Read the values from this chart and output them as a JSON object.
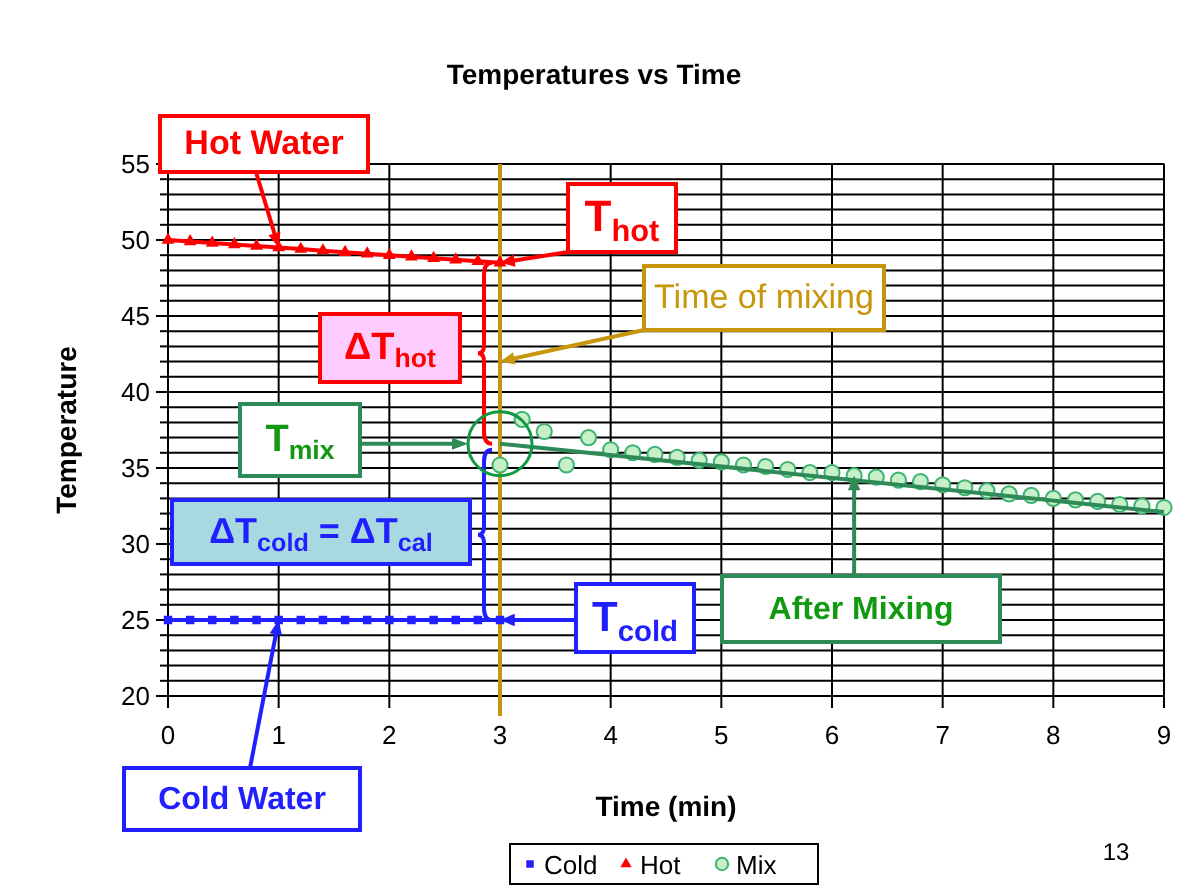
{
  "chart_data": {
    "type": "line",
    "title": "Temperatures vs Time",
    "xlabel": "Time (min)",
    "ylabel": "Temperature",
    "xlim": [
      0,
      9
    ],
    "xticks": [
      0,
      1,
      2,
      3,
      4,
      5,
      6,
      7,
      8,
      9
    ],
    "ylim": [
      20,
      55
    ],
    "yticks": [
      20,
      {
        "value": 21,
        "label": null
      },
      {
        "value": 22,
        "label": null
      },
      {
        "value": 23,
        "label": null
      },
      {
        "value": 24,
        "label": null
      },
      25,
      {
        "value": 26,
        "label": null
      },
      {
        "value": 27,
        "label": null
      },
      {
        "value": 28,
        "label": null
      },
      {
        "value": 29,
        "label": null
      },
      30,
      {
        "value": 31,
        "label": null
      },
      {
        "value": 32,
        "label": null
      },
      {
        "value": 33,
        "label": null
      },
      {
        "value": 34,
        "label": null
      },
      35,
      {
        "value": 36,
        "label": null
      },
      {
        "value": 37,
        "label": null
      },
      {
        "value": 38,
        "label": null
      },
      {
        "value": 39,
        "label": null
      },
      40,
      {
        "value": 41,
        "label": null
      },
      {
        "value": 42,
        "label": null
      },
      {
        "value": 43,
        "label": null
      },
      {
        "value": 44,
        "label": null
      },
      45,
      {
        "value": 46,
        "label": null
      },
      {
        "value": 47,
        "label": null
      },
      {
        "value": 48,
        "label": null
      },
      {
        "value": 49,
        "label": null
      },
      50,
      {
        "value": 51,
        "label": null
      },
      {
        "value": 52,
        "label": null
      },
      {
        "value": 53,
        "label": null
      },
      {
        "value": 54,
        "label": null
      },
      55
    ],
    "grid": true,
    "legend": "bottom",
    "series": [
      {
        "name": "Cold",
        "type": "line",
        "marker": "square",
        "color": "#1f1fff",
        "x": [
          0,
          0.2,
          0.4,
          0.6,
          0.8,
          1,
          1.2,
          1.4,
          1.6,
          1.8,
          2,
          2.2,
          2.4,
          2.6,
          2.8,
          3
        ],
        "values": [
          25,
          25,
          25,
          25,
          25,
          25,
          25,
          25,
          25,
          25,
          25,
          25,
          25,
          25,
          25,
          25
        ]
      },
      {
        "name": "Hot",
        "type": "line",
        "marker": "triangle",
        "color": "#ff0000",
        "x": [
          0,
          0.2,
          0.4,
          0.6,
          0.8,
          1,
          1.2,
          1.4,
          1.6,
          1.8,
          2,
          2.2,
          2.4,
          2.6,
          2.8,
          3
        ],
        "values": [
          50,
          49.9,
          49.8,
          49.7,
          49.6,
          49.5,
          49.4,
          49.3,
          49.2,
          49.1,
          49,
          48.9,
          48.8,
          48.7,
          48.6,
          48.5
        ]
      },
      {
        "name": "Mix",
        "type": "scatter",
        "marker": "circle",
        "color": "#3cb371",
        "x": [
          3,
          3.2,
          3.4,
          3.6,
          3.8,
          4,
          4.2,
          4.4,
          4.6,
          4.8,
          5,
          5.2,
          5.4,
          5.6,
          5.8,
          6,
          6.2,
          6.4,
          6.6,
          6.8,
          7,
          7.2,
          7.4,
          7.6,
          7.8,
          8,
          8.2,
          8.4,
          8.6,
          8.8,
          9
        ],
        "values": [
          35.2,
          38.2,
          37.4,
          35.2,
          37,
          36.2,
          36,
          35.9,
          35.7,
          35.5,
          35.4,
          35.2,
          35.1,
          34.9,
          34.7,
          34.7,
          34.5,
          34.4,
          34.2,
          34.1,
          33.9,
          33.7,
          33.5,
          33.3,
          33.2,
          33,
          32.9,
          32.8,
          32.6,
          32.5,
          32.4
        ]
      },
      {
        "type": "line",
        "color": "#2e8b57",
        "x": [
          3,
          9
        ],
        "values": [
          36.6,
          32.1
        ]
      }
    ],
    "ref_lines": [
      {
        "axis": "x",
        "value": 3,
        "color": "#c8960a"
      }
    ],
    "annotations": [
      {
        "text": "Hot Water",
        "x": 1,
        "y": 49.5
      },
      {
        "text": "T$_{hot}$",
        "x": 3,
        "y": 48.5
      },
      {
        "text": "Time of mixing",
        "x": 3,
        "y": 42
      },
      "ΔT$_{hot}$",
      "T$_{mix}$",
      "ΔT$_{cold}$ = ΔT$_{cal}$",
      {
        "text": "T$_{cold}$",
        "x": 3,
        "y": 25
      },
      {
        "text": "After Mixing",
        "x": 6.2,
        "y": 34.5
      },
      {
        "text": "Cold Water",
        "x": 1,
        "y": 25
      },
      "13"
    ]
  }
}
